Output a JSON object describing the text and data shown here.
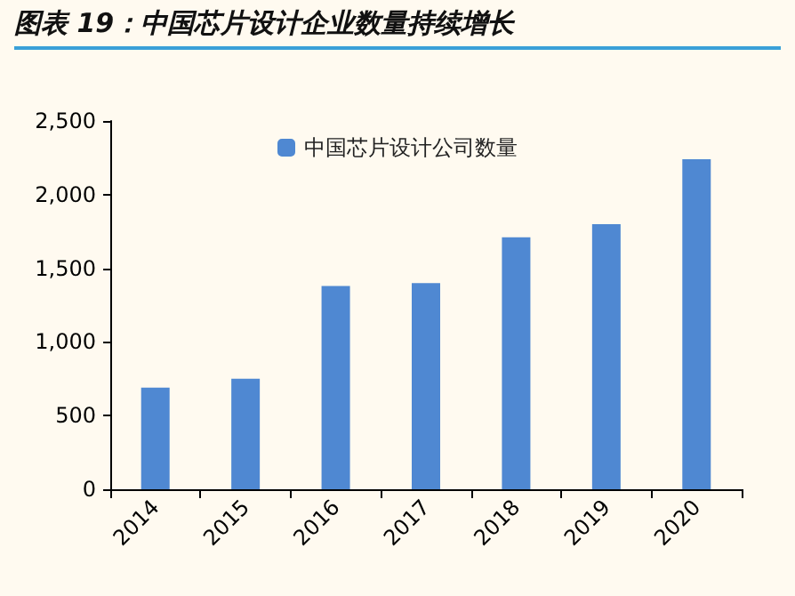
{
  "chart_data": {
    "type": "bar",
    "title": "图表 19：中国芯片设计企业数量持续增长",
    "categories": [
      "2014",
      "2015",
      "2016",
      "2017",
      "2018",
      "2019",
      "2020"
    ],
    "series": [
      {
        "name": "中国芯片设计公司数量",
        "color": "#4f88d2",
        "values": [
          690,
          750,
          1380,
          1400,
          1710,
          1800,
          2240
        ]
      }
    ],
    "ylim": [
      0,
      2500
    ],
    "yticks": [
      0,
      500,
      {
        "value": 1000,
        "label": "1,000"
      },
      {
        "value": 1500,
        "label": "1,500"
      },
      {
        "value": 2000,
        "label": "2,000"
      },
      {
        "value": 2500,
        "label": "2,500"
      }
    ],
    "grid": false,
    "legend": "top"
  }
}
